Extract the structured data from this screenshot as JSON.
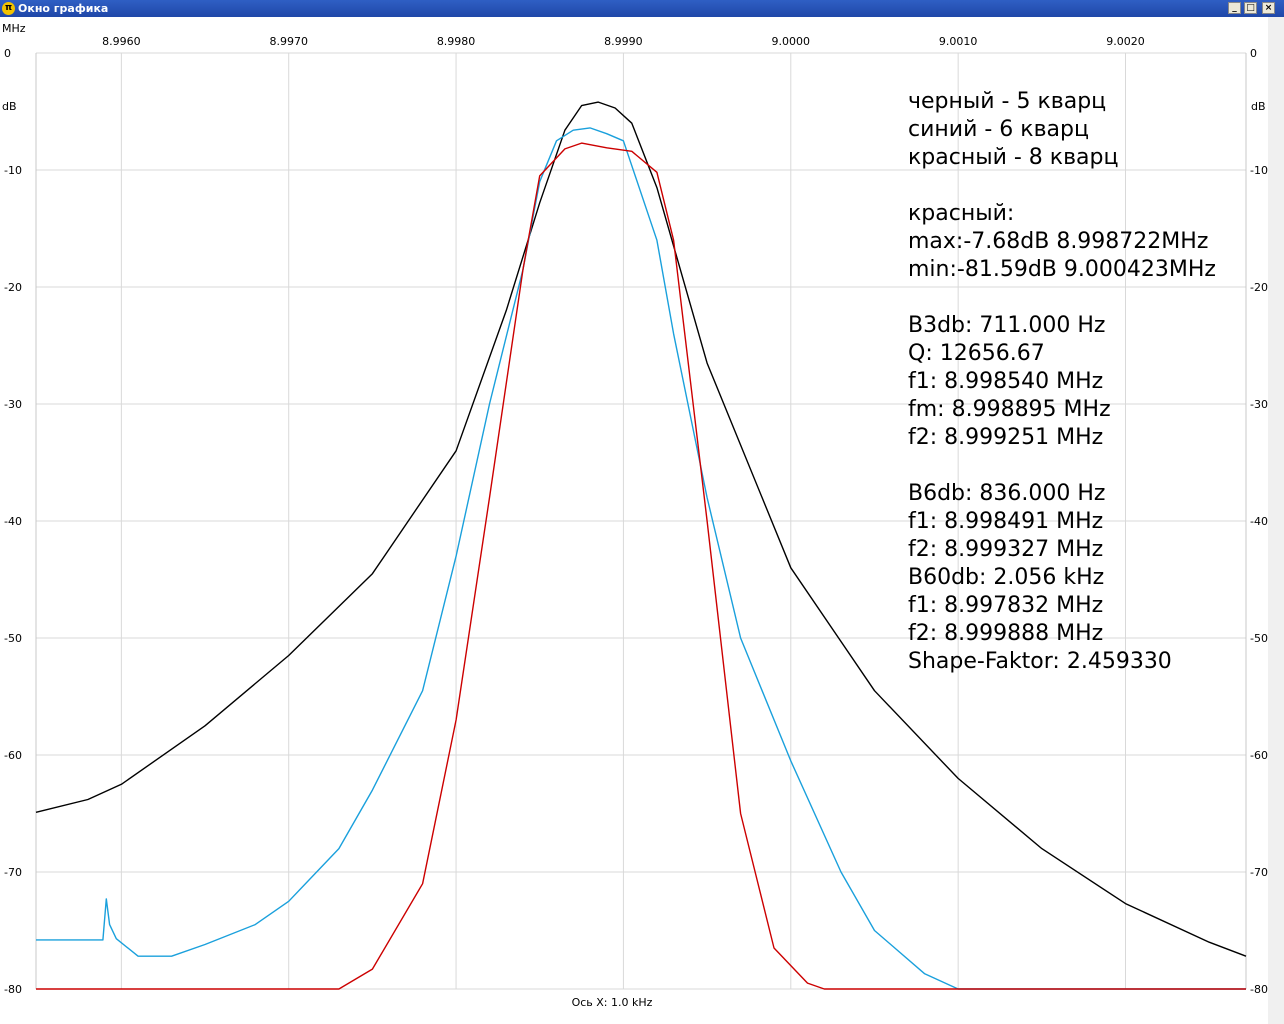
{
  "window": {
    "title": "Окно графика",
    "buttons": [
      "_",
      "□",
      "×"
    ]
  },
  "chart_data": {
    "type": "line",
    "x_unit": "MHz",
    "y_unit": "dB",
    "xlim": [
      8.99549,
      9.00272
    ],
    "ylim": [
      -80,
      0
    ],
    "x_ticks": [
      "8.9960",
      "8.9970",
      "8.9980",
      "8.9990",
      "9.0000",
      "9.0010",
      "9.0020"
    ],
    "x_tick_values": [
      8.996,
      8.997,
      8.998,
      8.999,
      9.0,
      9.001,
      9.002
    ],
    "y_ticks": [
      "0",
      "-10",
      "-20",
      "-30",
      "-40",
      "-50",
      "-60",
      "-70",
      "-80"
    ],
    "y_tick_values": [
      0,
      -10,
      -20,
      -30,
      -40,
      -50,
      -60,
      -70,
      -80
    ],
    "x_axis_caption": "Ось X: 1.0 kHz",
    "series": [
      {
        "name": "черный - 5 кварц",
        "color": "#000000",
        "x": [
          8.99549,
          8.9958,
          8.996,
          8.9965,
          8.997,
          8.9975,
          8.998,
          8.9983,
          8.9985,
          8.99865,
          8.99875,
          8.99885,
          8.99895,
          8.99905,
          8.9992,
          8.9995,
          9.0,
          9.0005,
          9.001,
          9.0015,
          9.002,
          9.0025,
          9.00272
        ],
        "y": [
          -64.9,
          -63.8,
          -62.5,
          -57.5,
          -51.5,
          -44.5,
          -34,
          -22,
          -12.8,
          -6.6,
          -4.5,
          -4.2,
          -4.7,
          -6,
          -11.5,
          -26.5,
          -44,
          -54.5,
          -62,
          -68,
          -72.7,
          -76,
          -77.2
        ]
      },
      {
        "name": "синий - 6 кварц",
        "color": "#1aa0dc",
        "x": [
          8.99549,
          8.99589,
          8.99591,
          8.99593,
          8.99597,
          8.9961,
          8.9963,
          8.9965,
          8.9968,
          8.997,
          8.9973,
          8.9975,
          8.9978,
          8.998,
          8.9982,
          8.9984,
          8.9985,
          8.9986,
          8.9987,
          8.9988,
          8.9989,
          8.999,
          8.9992,
          8.9993,
          8.9995,
          8.9997,
          9.0,
          9.0003,
          9.0005,
          9.0008,
          9.001,
          9.00272
        ],
        "y": [
          -75.8,
          -75.8,
          -72.3,
          -74.5,
          -75.7,
          -77.2,
          -77.2,
          -76.2,
          -74.5,
          -72.5,
          -68,
          -63,
          -54.5,
          -43,
          -30,
          -18.5,
          -11,
          -7.5,
          -6.6,
          -6.4,
          -6.9,
          -7.5,
          -16,
          -24,
          -38,
          -50,
          -60.5,
          -70,
          -75,
          -78.7,
          -80,
          -80
        ]
      },
      {
        "name": "красный - 8 кварц",
        "color": "#cc0000",
        "x": [
          8.99549,
          8.9973,
          8.9975,
          8.9978,
          8.998,
          8.9982,
          8.9984,
          8.9985,
          8.99865,
          8.99875,
          8.9989,
          8.99905,
          8.9992,
          8.9993,
          8.9995,
          8.9997,
          8.9999,
          9.0001,
          9.0002,
          9.00272
        ],
        "y": [
          -80,
          -80,
          -78.3,
          -71,
          -57,
          -38,
          -18.5,
          -10.5,
          -8.2,
          -7.7,
          -8.1,
          -8.4,
          -10.2,
          -16,
          -40,
          -65,
          -76.5,
          -79.5,
          -80,
          -80
        ]
      }
    ]
  },
  "legend_lines": [
    "черный - 5 кварц",
    "синий - 6 кварц",
    "красный - 8 кварц",
    "",
    "красный:",
    "max:-7.68dB 8.998722MHz",
    "min:-81.59dB 9.000423MHz",
    "",
    "B3db: 711.000 Hz",
    "Q: 12656.67",
    "f1: 8.998540 MHz",
    "fm: 8.998895 MHz",
    "f2: 8.999251 MHz",
    "",
    "B6db: 836.000 Hz",
    "f1: 8.998491 MHz",
    "f2: 8.999327 MHz",
    "B60db: 2.056 kHz",
    "f1: 8.997832 MHz",
    "f2: 8.999888 MHz",
    "Shape-Faktor: 2.459330"
  ]
}
